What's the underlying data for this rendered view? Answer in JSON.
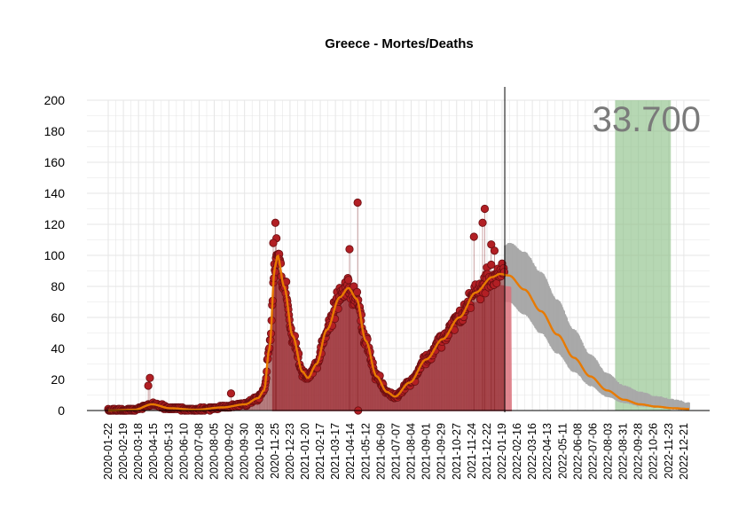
{
  "chart_data": {
    "type": "scatter",
    "title": "Greece - Mortes/Deaths",
    "xlabel": "",
    "ylabel": "",
    "ylim": [
      0,
      200
    ],
    "y_ticks": [
      "0",
      "20",
      "40",
      "60",
      "80",
      "100",
      "120",
      "140",
      "160",
      "180",
      "200"
    ],
    "x_range": [
      "2020-01-22",
      "2022-12-31"
    ],
    "x_ticks": [
      "2020-01-22",
      "2020-02-19",
      "2020-03-18",
      "2020-04-15",
      "2020-05-13",
      "2020-06-10",
      "2020-07-08",
      "2020-08-05",
      "2020-09-02",
      "2020-09-30",
      "2020-10-28",
      "2020-11-25",
      "2020-12-23",
      "2021-01-20",
      "2021-02-17",
      "2021-03-17",
      "2021-04-14",
      "2021-05-12",
      "2021-06-09",
      "2021-07-07",
      "2021-08-04",
      "2021-09-01",
      "2021-09-29",
      "2021-10-27",
      "2021-11-24",
      "2021-12-22",
      "2022-01-19",
      "2022-02-16",
      "2022-03-16",
      "2022-04-13",
      "2022-05-11",
      "2022-06-08",
      "2022-07-06",
      "2022-08-03",
      "2022-08-31",
      "2022-09-28",
      "2022-10-26",
      "2022-11-23",
      "2022-12-21"
    ],
    "grid": true,
    "cutoff_date": "2022-01-24",
    "highlight_total": "33.700",
    "highlight_range": [
      "2022-08-16",
      "2022-11-27"
    ],
    "colors": {
      "points": "#b21f24",
      "points_edge": "#6b0f12",
      "area": "#d9707a",
      "trend": "#e87a00",
      "forecast_band": "#a9a9a9",
      "highlight": "#8fc28a",
      "grid": "#e6e6e6"
    },
    "trend_knots": [
      [
        "2020-01-22",
        0
      ],
      [
        "2020-03-10",
        0.5
      ],
      [
        "2020-04-12",
        4
      ],
      [
        "2020-05-15",
        1.5
      ],
      [
        "2020-07-01",
        0.5
      ],
      [
        "2020-08-20",
        2
      ],
      [
        "2020-10-01",
        4
      ],
      [
        "2020-10-25",
        8
      ],
      [
        "2020-11-05",
        13
      ],
      [
        "2020-11-15",
        40
      ],
      [
        "2020-11-25",
        92
      ],
      [
        "2020-11-30",
        100
      ],
      [
        "2020-12-12",
        80
      ],
      [
        "2020-12-28",
        48
      ],
      [
        "2021-01-15",
        25
      ],
      [
        "2021-01-25",
        21
      ],
      [
        "2021-02-10",
        30
      ],
      [
        "2021-03-01",
        52
      ],
      [
        "2021-03-25",
        73
      ],
      [
        "2021-04-10",
        79
      ],
      [
        "2021-04-25",
        72
      ],
      [
        "2021-05-12",
        45
      ],
      [
        "2021-06-01",
        22
      ],
      [
        "2021-06-20",
        12
      ],
      [
        "2021-07-05",
        9
      ],
      [
        "2021-08-01",
        18
      ],
      [
        "2021-09-01",
        33
      ],
      [
        "2021-10-01",
        46
      ],
      [
        "2021-11-01",
        60
      ],
      [
        "2021-12-01",
        76
      ],
      [
        "2022-01-01",
        86
      ],
      [
        "2022-01-15",
        88
      ],
      [
        "2022-02-01",
        87
      ],
      [
        "2022-03-01",
        78
      ],
      [
        "2022-04-01",
        64
      ],
      [
        "2022-05-01",
        49
      ],
      [
        "2022-06-01",
        34
      ],
      [
        "2022-07-01",
        22
      ],
      [
        "2022-08-01",
        13
      ],
      [
        "2022-09-01",
        7
      ],
      [
        "2022-10-01",
        4
      ],
      [
        "2022-11-01",
        2.5
      ],
      [
        "2022-12-01",
        1.5
      ],
      [
        "2022-12-31",
        1
      ]
    ],
    "band_knots": [
      [
        "2022-01-24",
        70,
        106
      ],
      [
        "2022-02-01",
        70,
        108
      ],
      [
        "2022-03-01",
        62,
        102
      ],
      [
        "2022-04-01",
        50,
        89
      ],
      [
        "2022-05-01",
        37,
        71
      ],
      [
        "2022-06-01",
        25,
        52
      ],
      [
        "2022-07-01",
        16,
        36
      ],
      [
        "2022-08-01",
        9,
        24
      ],
      [
        "2022-09-01",
        5,
        16
      ],
      [
        "2022-10-01",
        3,
        12
      ],
      [
        "2022-11-01",
        2,
        9
      ],
      [
        "2022-12-01",
        1,
        7
      ],
      [
        "2022-12-31",
        0.5,
        5
      ]
    ],
    "outliers": [
      [
        "2020-04-08",
        21
      ],
      [
        "2020-04-05",
        16
      ],
      [
        "2020-09-05",
        11
      ],
      [
        "2020-11-26",
        121
      ],
      [
        "2020-11-28",
        111
      ],
      [
        "2020-11-22",
        108
      ],
      [
        "2021-04-12",
        104
      ],
      [
        "2021-04-27",
        134
      ],
      [
        "2021-04-28",
        0
      ],
      [
        "2021-11-28",
        112
      ],
      [
        "2021-12-14",
        121
      ],
      [
        "2021-12-18",
        130
      ],
      [
        "2021-12-30",
        107
      ],
      [
        "2022-01-05",
        103
      ]
    ]
  }
}
